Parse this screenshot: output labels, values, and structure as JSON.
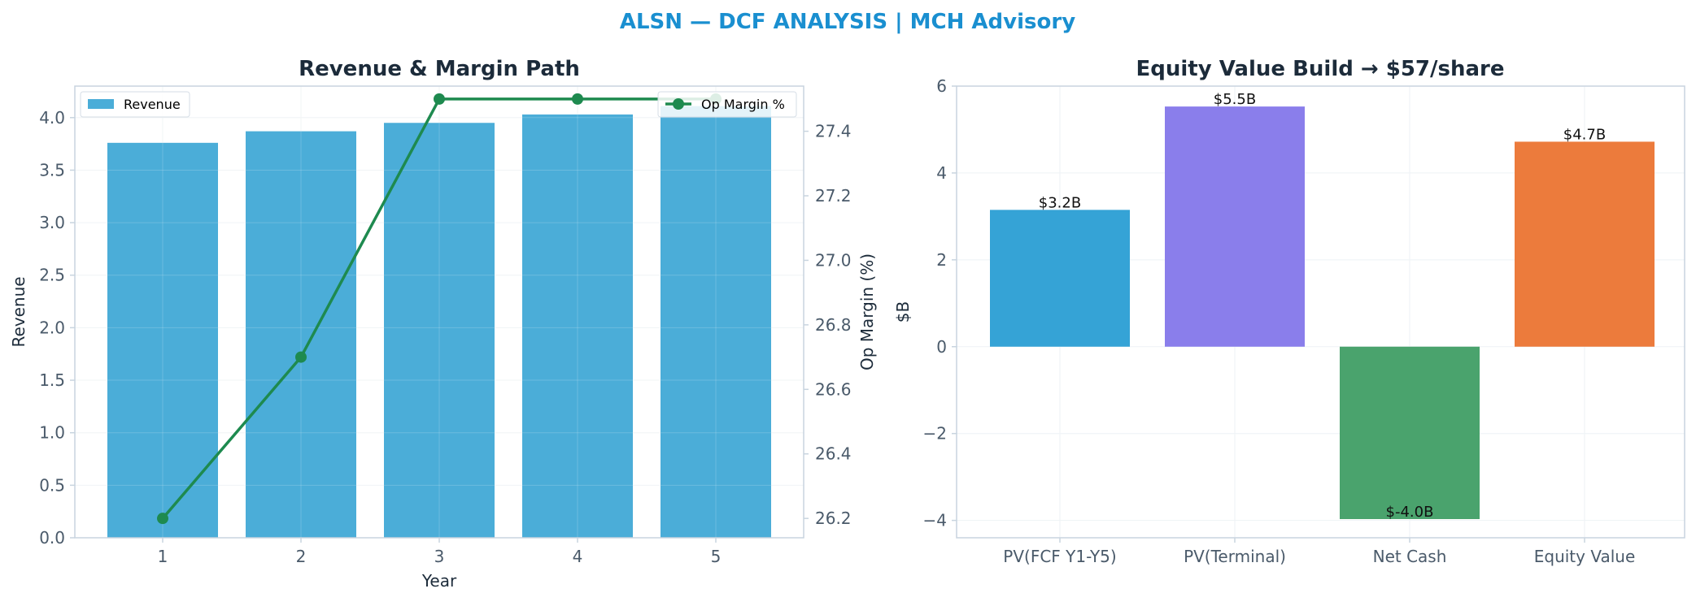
{
  "suptitle": "ALSN — DCF ANALYSIS | MCH Advisory",
  "colors": {
    "suptitle": "#1a8fd0",
    "title": "#1c2b3a",
    "axis": "#c8d4df",
    "tick_text": "#4a5a6a",
    "label_text": "#1c2b3a",
    "revenue_bar": "#4badd8",
    "margin_line": "#1e8a4f",
    "grid": "#eef2f5"
  },
  "chart_data": [
    {
      "type": "bar+line",
      "title": "Revenue & Margin Path",
      "xlabel": "Year",
      "ylabel": "Revenue",
      "y2label": "Op Margin (%)",
      "categories": [
        "1",
        "2",
        "3",
        "4",
        "5"
      ],
      "ylim": [
        0,
        4.3
      ],
      "yticks": [
        "0.0",
        "0.5",
        "1.0",
        "1.5",
        "2.0",
        "2.5",
        "3.0",
        "3.5",
        "4.0"
      ],
      "y2lim": [
        26.14,
        27.54
      ],
      "y2ticks": [
        "26.2",
        "26.4",
        "26.6",
        "26.8",
        "27.0",
        "27.2",
        "27.4"
      ],
      "grid": true,
      "series": [
        {
          "name": "Revenue",
          "kind": "bar",
          "axis": "left",
          "values": [
            3.76,
            3.87,
            3.95,
            4.03,
            4.11
          ],
          "color": "#4badd8"
        },
        {
          "name": "Op Margin %",
          "kind": "line",
          "axis": "right",
          "marker": "circle",
          "values": [
            26.2,
            26.7,
            27.5,
            27.5,
            27.5
          ],
          "color": "#1e8a4f"
        }
      ],
      "legend": [
        {
          "label": "Revenue",
          "placement": "top-left"
        },
        {
          "label": "Op Margin %",
          "placement": "top-right"
        }
      ]
    },
    {
      "type": "bar",
      "title": "Equity Value Build → $57/share",
      "ylabel": "$B",
      "categories": [
        "PV(FCF Y1-Y5)",
        "PV(Terminal)",
        "Net Cash",
        "Equity Value"
      ],
      "values": [
        3.15,
        5.53,
        -3.97,
        4.72
      ],
      "labels": [
        "$3.2B",
        "$5.5B",
        "$-4.0B",
        "$4.7B"
      ],
      "colors": [
        "#35a3d6",
        "#8a7eeb",
        "#4aa36d",
        "#ec7b3c"
      ],
      "ylim": [
        -4.4,
        6.0
      ],
      "yticks": [
        "−4",
        "−2",
        "0",
        "2",
        "4",
        "6"
      ],
      "ytick_values": [
        -4,
        -2,
        0,
        2,
        4,
        6
      ],
      "grid": true
    }
  ]
}
